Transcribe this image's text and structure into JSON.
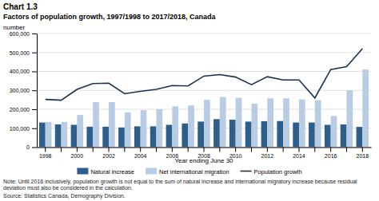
{
  "chart_data": {
    "type": "bar",
    "title": "Chart 1.3",
    "subtitle": "Factors of population growth, 1997/1998 to 2017/2018,  Canada",
    "ylabel": "number",
    "xlabel": "Year ending June 30",
    "note": "Note: Until 2016 inclusively, population growth is not equal to the sum of natural increase and international migratory increase because residual\ndeviation must also be considered in the calculation.",
    "source": "Source: Statistics Canada, Demography Division.",
    "categories": [
      "1998",
      null,
      "2000",
      null,
      "2002",
      null,
      "2004",
      null,
      "2006",
      null,
      "2008",
      null,
      "2010",
      null,
      "2012",
      null,
      "2014",
      null,
      "2016",
      null,
      "2018"
    ],
    "series": [
      {
        "name": "Natural increase",
        "type": "bar",
        "color": "#2e5f8a",
        "values": [
          130000,
          120000,
          118000,
          108000,
          108000,
          104000,
          110000,
          110000,
          118000,
          125000,
          135000,
          148000,
          145000,
          135000,
          137000,
          138000,
          130000,
          130000,
          118000,
          120000,
          107000
        ]
      },
      {
        "name": "Net international migration",
        "type": "bar",
        "color": "#b8cce4",
        "values": [
          133000,
          133000,
          170000,
          238000,
          238000,
          183000,
          195000,
          200000,
          215000,
          220000,
          250000,
          265000,
          260000,
          230000,
          258000,
          258000,
          252000,
          248000,
          165000,
          300000,
          410000
        ]
      },
      {
        "name": "Population growth",
        "type": "line",
        "color": "#1a3050",
        "values": [
          252000,
          248000,
          305000,
          336000,
          338000,
          282000,
          295000,
          305000,
          325000,
          323000,
          375000,
          383000,
          370000,
          330000,
          372000,
          355000,
          355000,
          260000,
          410000,
          425000,
          520000
        ]
      }
    ],
    "ylim": [
      0,
      600000
    ],
    "yticks": [
      0,
      {
        "value": 100000,
        "label": "100,000"
      },
      {
        "value": 200000,
        "label": "200,000"
      },
      {
        "value": 300000,
        "label": "300,000"
      },
      {
        "value": 400000,
        "label": "400,000"
      },
      {
        "value": 500000,
        "label": "500,000"
      },
      {
        "value": 600000,
        "label": "600,000"
      }
    ],
    "grid": true,
    "legend": "bottom"
  }
}
